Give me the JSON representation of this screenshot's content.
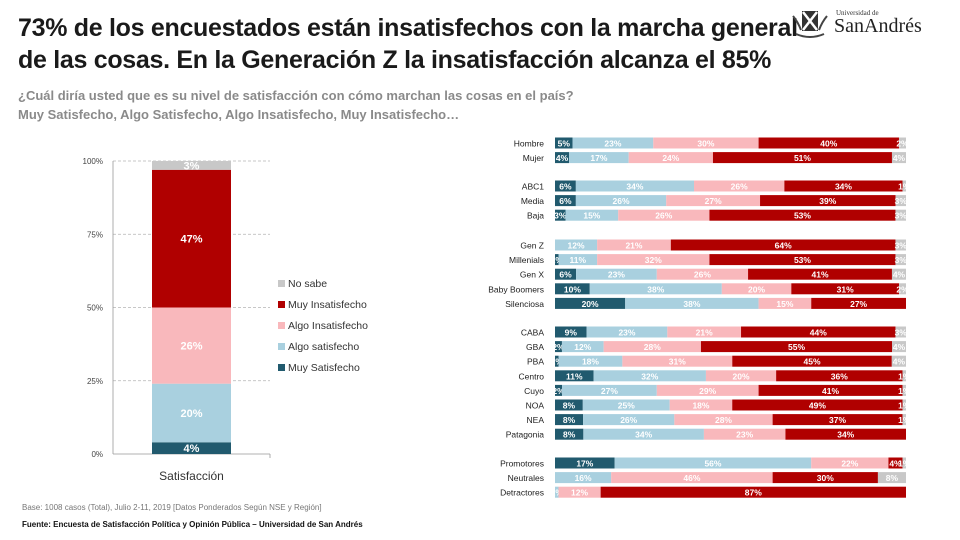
{
  "header": {
    "title": "73% de los encuestados están insatisfechos con la marcha general de las cosas. En la Generación Z la insatisfacción alcanza el 85%",
    "subtitle_line1": "¿Cuál diría usted que es su nivel de satisfacción con cómo marchan las cosas en el país?",
    "subtitle_line2": "Muy Satisfecho, Algo Satisfecho, Algo Insatisfecho, Muy Insatisfecho…"
  },
  "logo": {
    "small": "Universidad de",
    "big": "SanAndrés",
    "icon": "university-crest-icon"
  },
  "footer": {
    "base": "Base: 1008 casos (Total), Julio 2-11, 2019 [Datos Ponderados Según NSE y Región]",
    "fuente": "Fuente: Encuesta de Satisfacción Política y Opinión Pública – Universidad de San Andrés"
  },
  "colors": {
    "Muy Satisfecho": "#215a6e",
    "Algo satisfecho": "#a9d0df",
    "Algo Insatisfecho": "#f9b8bc",
    "Muy Insatisfecho": "#b00000",
    "No sabe": "#c8c8c8"
  },
  "chart_data": [
    {
      "type": "bar",
      "stacked": true,
      "title": "",
      "categories": [
        "Satisfacción"
      ],
      "xlabel": "",
      "ylabel": "",
      "ylim": [
        0,
        100
      ],
      "yticks": [
        "0%",
        "25%",
        "50%",
        "75%",
        "100%"
      ],
      "grid": true,
      "legend_position": "right",
      "legend": [
        "No sabe",
        "Muy Insatisfecho",
        "Algo Insatisfecho",
        "Algo satisfecho",
        "Muy Satisfecho"
      ],
      "series": [
        {
          "name": "Muy Satisfecho",
          "values": [
            4
          ],
          "label": "4%"
        },
        {
          "name": "Algo satisfecho",
          "values": [
            20
          ],
          "label": "20%"
        },
        {
          "name": "Algo Insatisfecho",
          "values": [
            26
          ],
          "label": "26%"
        },
        {
          "name": "Muy Insatisfecho",
          "values": [
            47
          ],
          "label": "47%"
        },
        {
          "name": "No sabe",
          "values": [
            3
          ],
          "label": "3%"
        }
      ]
    },
    {
      "type": "bar",
      "orientation": "horizontal",
      "stacked": true,
      "percent": true,
      "series_names": [
        "Muy Satisfecho",
        "Algo satisfecho",
        "Algo Insatisfecho",
        "Muy Insatisfecho",
        "No sabe"
      ],
      "groups": [
        {
          "rows": [
            {
              "label": "Hombre",
              "values": [
                5,
                23,
                30,
                40,
                2
              ]
            },
            {
              "label": "Mujer",
              "values": [
                4,
                17,
                24,
                51,
                4
              ]
            }
          ]
        },
        {
          "rows": [
            {
              "label": "ABC1",
              "values": [
                6,
                34,
                26,
                34,
                1
              ]
            },
            {
              "label": "Media",
              "values": [
                6,
                26,
                27,
                39,
                3
              ]
            },
            {
              "label": "Baja",
              "values": [
                3,
                15,
                26,
                53,
                3
              ]
            }
          ]
        },
        {
          "rows": [
            {
              "label": "Gen Z",
              "values": [
                0,
                12,
                21,
                64,
                3
              ]
            },
            {
              "label": "Millenials",
              "values": [
                1,
                11,
                32,
                53,
                3
              ]
            },
            {
              "label": "Gen X",
              "values": [
                6,
                23,
                26,
                41,
                4
              ]
            },
            {
              "label": "Baby Boomers",
              "values": [
                10,
                38,
                20,
                31,
                2
              ]
            },
            {
              "label": "Silenciosa",
              "values": [
                20,
                38,
                15,
                27,
                0
              ]
            }
          ]
        },
        {
          "rows": [
            {
              "label": "CABA",
              "values": [
                9,
                23,
                21,
                44,
                3
              ]
            },
            {
              "label": "GBA",
              "values": [
                2,
                12,
                28,
                55,
                4
              ]
            },
            {
              "label": "PBA",
              "values": [
                1,
                18,
                31,
                45,
                4
              ]
            },
            {
              "label": "Centro",
              "values": [
                11,
                32,
                20,
                36,
                1
              ]
            },
            {
              "label": "Cuyo",
              "values": [
                2,
                27,
                29,
                41,
                1
              ]
            },
            {
              "label": "NOA",
              "values": [
                8,
                25,
                18,
                49,
                1
              ]
            },
            {
              "label": "NEA",
              "values": [
                8,
                26,
                28,
                37,
                1
              ]
            },
            {
              "label": "Patagonia",
              "values": [
                8,
                34,
                23,
                34,
                0
              ]
            }
          ]
        },
        {
          "rows": [
            {
              "label": "Promotores",
              "values": [
                17,
                56,
                22,
                4,
                1
              ]
            },
            {
              "label": "Neutrales",
              "values": [
                0,
                16,
                46,
                30,
                8
              ]
            },
            {
              "label": "Detractores",
              "values": [
                0,
                1,
                12,
                87,
                0
              ]
            }
          ]
        }
      ]
    }
  ]
}
